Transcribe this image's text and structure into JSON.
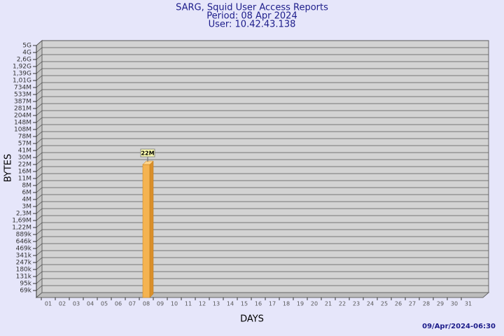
{
  "chart_data": {
    "type": "bar",
    "title": "SARG, Squid User Access Reports",
    "subtitle": [
      "Period: 08 Apr 2024",
      "User: 10.42.43.138"
    ],
    "xlabel": "DAYS",
    "ylabel": "BYTES",
    "footer": "09/Apr/2024-06:30",
    "categories": [
      "01",
      "02",
      "03",
      "04",
      "05",
      "06",
      "07",
      "08",
      "09",
      "10",
      "11",
      "12",
      "13",
      "14",
      "15",
      "16",
      "17",
      "18",
      "19",
      "20",
      "21",
      "22",
      "23",
      "24",
      "25",
      "26",
      "27",
      "28",
      "29",
      "30",
      "31"
    ],
    "values": [
      null,
      null,
      null,
      null,
      null,
      null,
      null,
      22000000,
      null,
      null,
      null,
      null,
      null,
      null,
      null,
      null,
      null,
      null,
      null,
      null,
      null,
      null,
      null,
      null,
      null,
      null,
      null,
      null,
      null,
      null,
      null
    ],
    "value_labels": [
      null,
      null,
      null,
      null,
      null,
      null,
      null,
      "22M",
      null,
      null,
      null,
      null,
      null,
      null,
      null,
      null,
      null,
      null,
      null,
      null,
      null,
      null,
      null,
      null,
      null,
      null,
      null,
      null,
      null,
      null,
      null
    ],
    "color": "#f4b351",
    "log_scale": true,
    "grid": true,
    "ylim": [
      50000,
      5000000000
    ],
    "yticks": [
      {
        "value": 69000,
        "label": "69k"
      },
      {
        "value": 95000,
        "label": "95k"
      },
      {
        "value": 131000,
        "label": "131k"
      },
      {
        "value": 180000,
        "label": "180k"
      },
      {
        "value": 247000,
        "label": "247k"
      },
      {
        "value": 341000,
        "label": "341k"
      },
      {
        "value": 469000,
        "label": "469k"
      },
      {
        "value": 646000,
        "label": "646k"
      },
      {
        "value": 889000,
        "label": "889k"
      },
      {
        "value": 1220000,
        "label": "1,22M"
      },
      {
        "value": 1690000,
        "label": "1,69M"
      },
      {
        "value": 2300000,
        "label": "2,3M"
      },
      {
        "value": 3000000,
        "label": "3M"
      },
      {
        "value": 4000000,
        "label": "4M"
      },
      {
        "value": 6000000,
        "label": "6M"
      },
      {
        "value": 8000000,
        "label": "8M"
      },
      {
        "value": 11000000,
        "label": "11M"
      },
      {
        "value": 16000000,
        "label": "16M"
      },
      {
        "value": 22000000,
        "label": "22M"
      },
      {
        "value": 30000000,
        "label": "30M"
      },
      {
        "value": 41000000,
        "label": "41M"
      },
      {
        "value": 57000000,
        "label": "57M"
      },
      {
        "value": 78000000,
        "label": "78M"
      },
      {
        "value": 108000000,
        "label": "108M"
      },
      {
        "value": 148000000,
        "label": "148M"
      },
      {
        "value": 204000000,
        "label": "204M"
      },
      {
        "value": 281000000,
        "label": "281M"
      },
      {
        "value": 387000000,
        "label": "387M"
      },
      {
        "value": 533000000,
        "label": "533M"
      },
      {
        "value": 734000000,
        "label": "734M"
      },
      {
        "value": 1010000000,
        "label": "1,01G"
      },
      {
        "value": 1390000000,
        "label": "1,39G"
      },
      {
        "value": 1920000000,
        "label": "1,92G"
      },
      {
        "value": 2600000000,
        "label": "2,6G"
      },
      {
        "value": 4000000000,
        "label": "4G"
      },
      {
        "value": 5000000000,
        "label": "5G"
      }
    ]
  }
}
